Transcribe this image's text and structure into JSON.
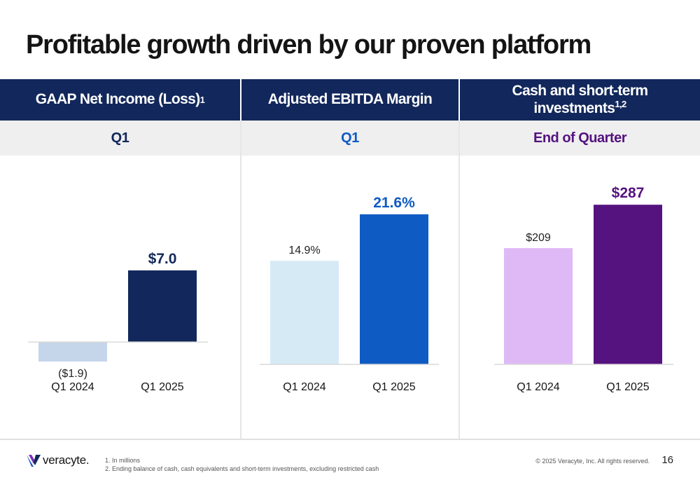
{
  "slide": {
    "title": "Profitable growth driven by our proven platform",
    "page_number": "16"
  },
  "columns": [
    {
      "header": "GAAP Net Income (Loss)",
      "header_sup": "1",
      "subheader": "Q1",
      "subheader_color": "#12275b"
    },
    {
      "header": "Adjusted EBITDA Margin",
      "header_sup": "",
      "subheader": "Q1",
      "subheader_color": "#0f5bc4"
    },
    {
      "header": "Cash and short-term investments",
      "header_sup": "1,2",
      "subheader": "End of Quarter",
      "subheader_color": "#55137f"
    }
  ],
  "footer": {
    "logo_text": "veracyte.",
    "footnote_1": "1.  In millions",
    "footnote_2": "2.  Ending balance of cash, cash equivalents and short-term investments, excluding restricted cash",
    "copyright": "© 2025 Veracyte, Inc. All rights reserved."
  },
  "colors": {
    "header_bg": "#12275b",
    "subheader_bg": "#efefef",
    "title": "#141414"
  },
  "chart_data": [
    {
      "type": "bar",
      "title": "GAAP Net Income (Loss)",
      "categories": [
        "Q1 2024",
        "Q1 2025"
      ],
      "values": [
        -1.9,
        7.0
      ],
      "labels": [
        "($1.9)",
        "$7.0"
      ],
      "colors": [
        "#c5d5ea",
        "#12275b"
      ],
      "label_colors": [
        "#222222",
        "#12275b"
      ],
      "ylim": [
        -3,
        10
      ]
    },
    {
      "type": "bar",
      "title": "Adjusted EBITDA Margin",
      "categories": [
        "Q1 2024",
        "Q1 2025"
      ],
      "values": [
        14.9,
        21.6
      ],
      "labels": [
        "14.9%",
        "21.6%"
      ],
      "colors": [
        "#d6eaf6",
        "#0f5bc4"
      ],
      "label_colors": [
        "#222222",
        "#0f5bc4"
      ],
      "ylim": [
        0,
        24
      ]
    },
    {
      "type": "bar",
      "title": "Cash and short-term investments",
      "categories": [
        "Q1 2024",
        "Q1 2025"
      ],
      "values": [
        209,
        287
      ],
      "labels": [
        "$209",
        "$287"
      ],
      "colors": [
        "#dfb9f6",
        "#55137f"
      ],
      "label_colors": [
        "#222222",
        "#55137f"
      ],
      "ylim": [
        0,
        325
      ]
    }
  ]
}
